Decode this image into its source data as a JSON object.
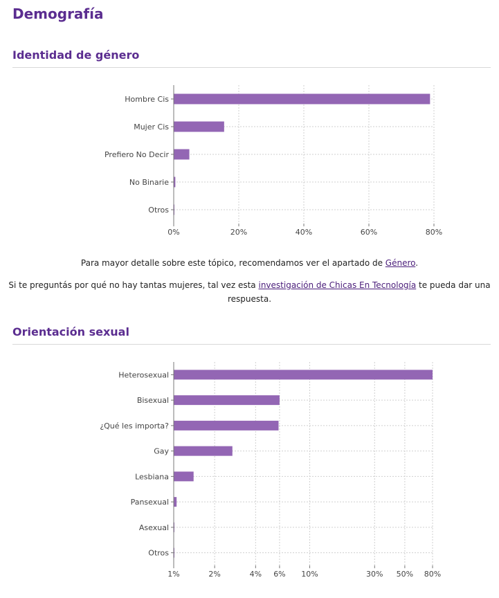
{
  "page": {
    "title": "Demografía"
  },
  "gender": {
    "heading": "Identidad de género",
    "note": {
      "before": "Para mayor detalle sobre este tópico, recomendamos ver el apartado de ",
      "link": "Género",
      "after": "."
    }
  },
  "research": {
    "before": "Si te preguntás por qué no hay tantas mujeres, tal vez esta ",
    "link": "investigación de Chicas En Tecnología",
    "after": " te pueda dar una respuesta."
  },
  "orientation": {
    "heading": "Orientación sexual"
  },
  "colors": {
    "bar": "#9366b4",
    "grid": "#cfcfcf",
    "axis": "#777777",
    "heading": "#5b2d90",
    "link": "#4a1d7a"
  },
  "chart_data": [
    {
      "type": "bar",
      "orientation": "horizontal",
      "categories": [
        "Hombre Cis",
        "Mujer Cis",
        "Prefiero No Decir",
        "No Binarie",
        "Otros"
      ],
      "values": [
        78.8,
        15.5,
        4.8,
        0.5,
        0.2
      ],
      "x_scale": "linear",
      "xlim": [
        0,
        80
      ],
      "x_ticks": [
        "0%",
        "20%",
        "40%",
        "60%",
        "80%"
      ],
      "grid": true
    },
    {
      "type": "bar",
      "orientation": "horizontal",
      "categories": [
        "Heterosexual",
        "Bisexual",
        "¿Qué les importa?",
        "Gay",
        "Lesbiana",
        "Pansexual",
        "Asexual",
        "Otros"
      ],
      "values": [
        80,
        6,
        5.9,
        2.7,
        1.4,
        1.05,
        0.95,
        0.95
      ],
      "x_scale": "log",
      "xlim": [
        1,
        80
      ],
      "x_ticks": [
        "1%",
        "2%",
        "4%",
        "6%",
        "10%",
        "30%",
        "50%",
        "80%"
      ],
      "grid": true
    }
  ]
}
